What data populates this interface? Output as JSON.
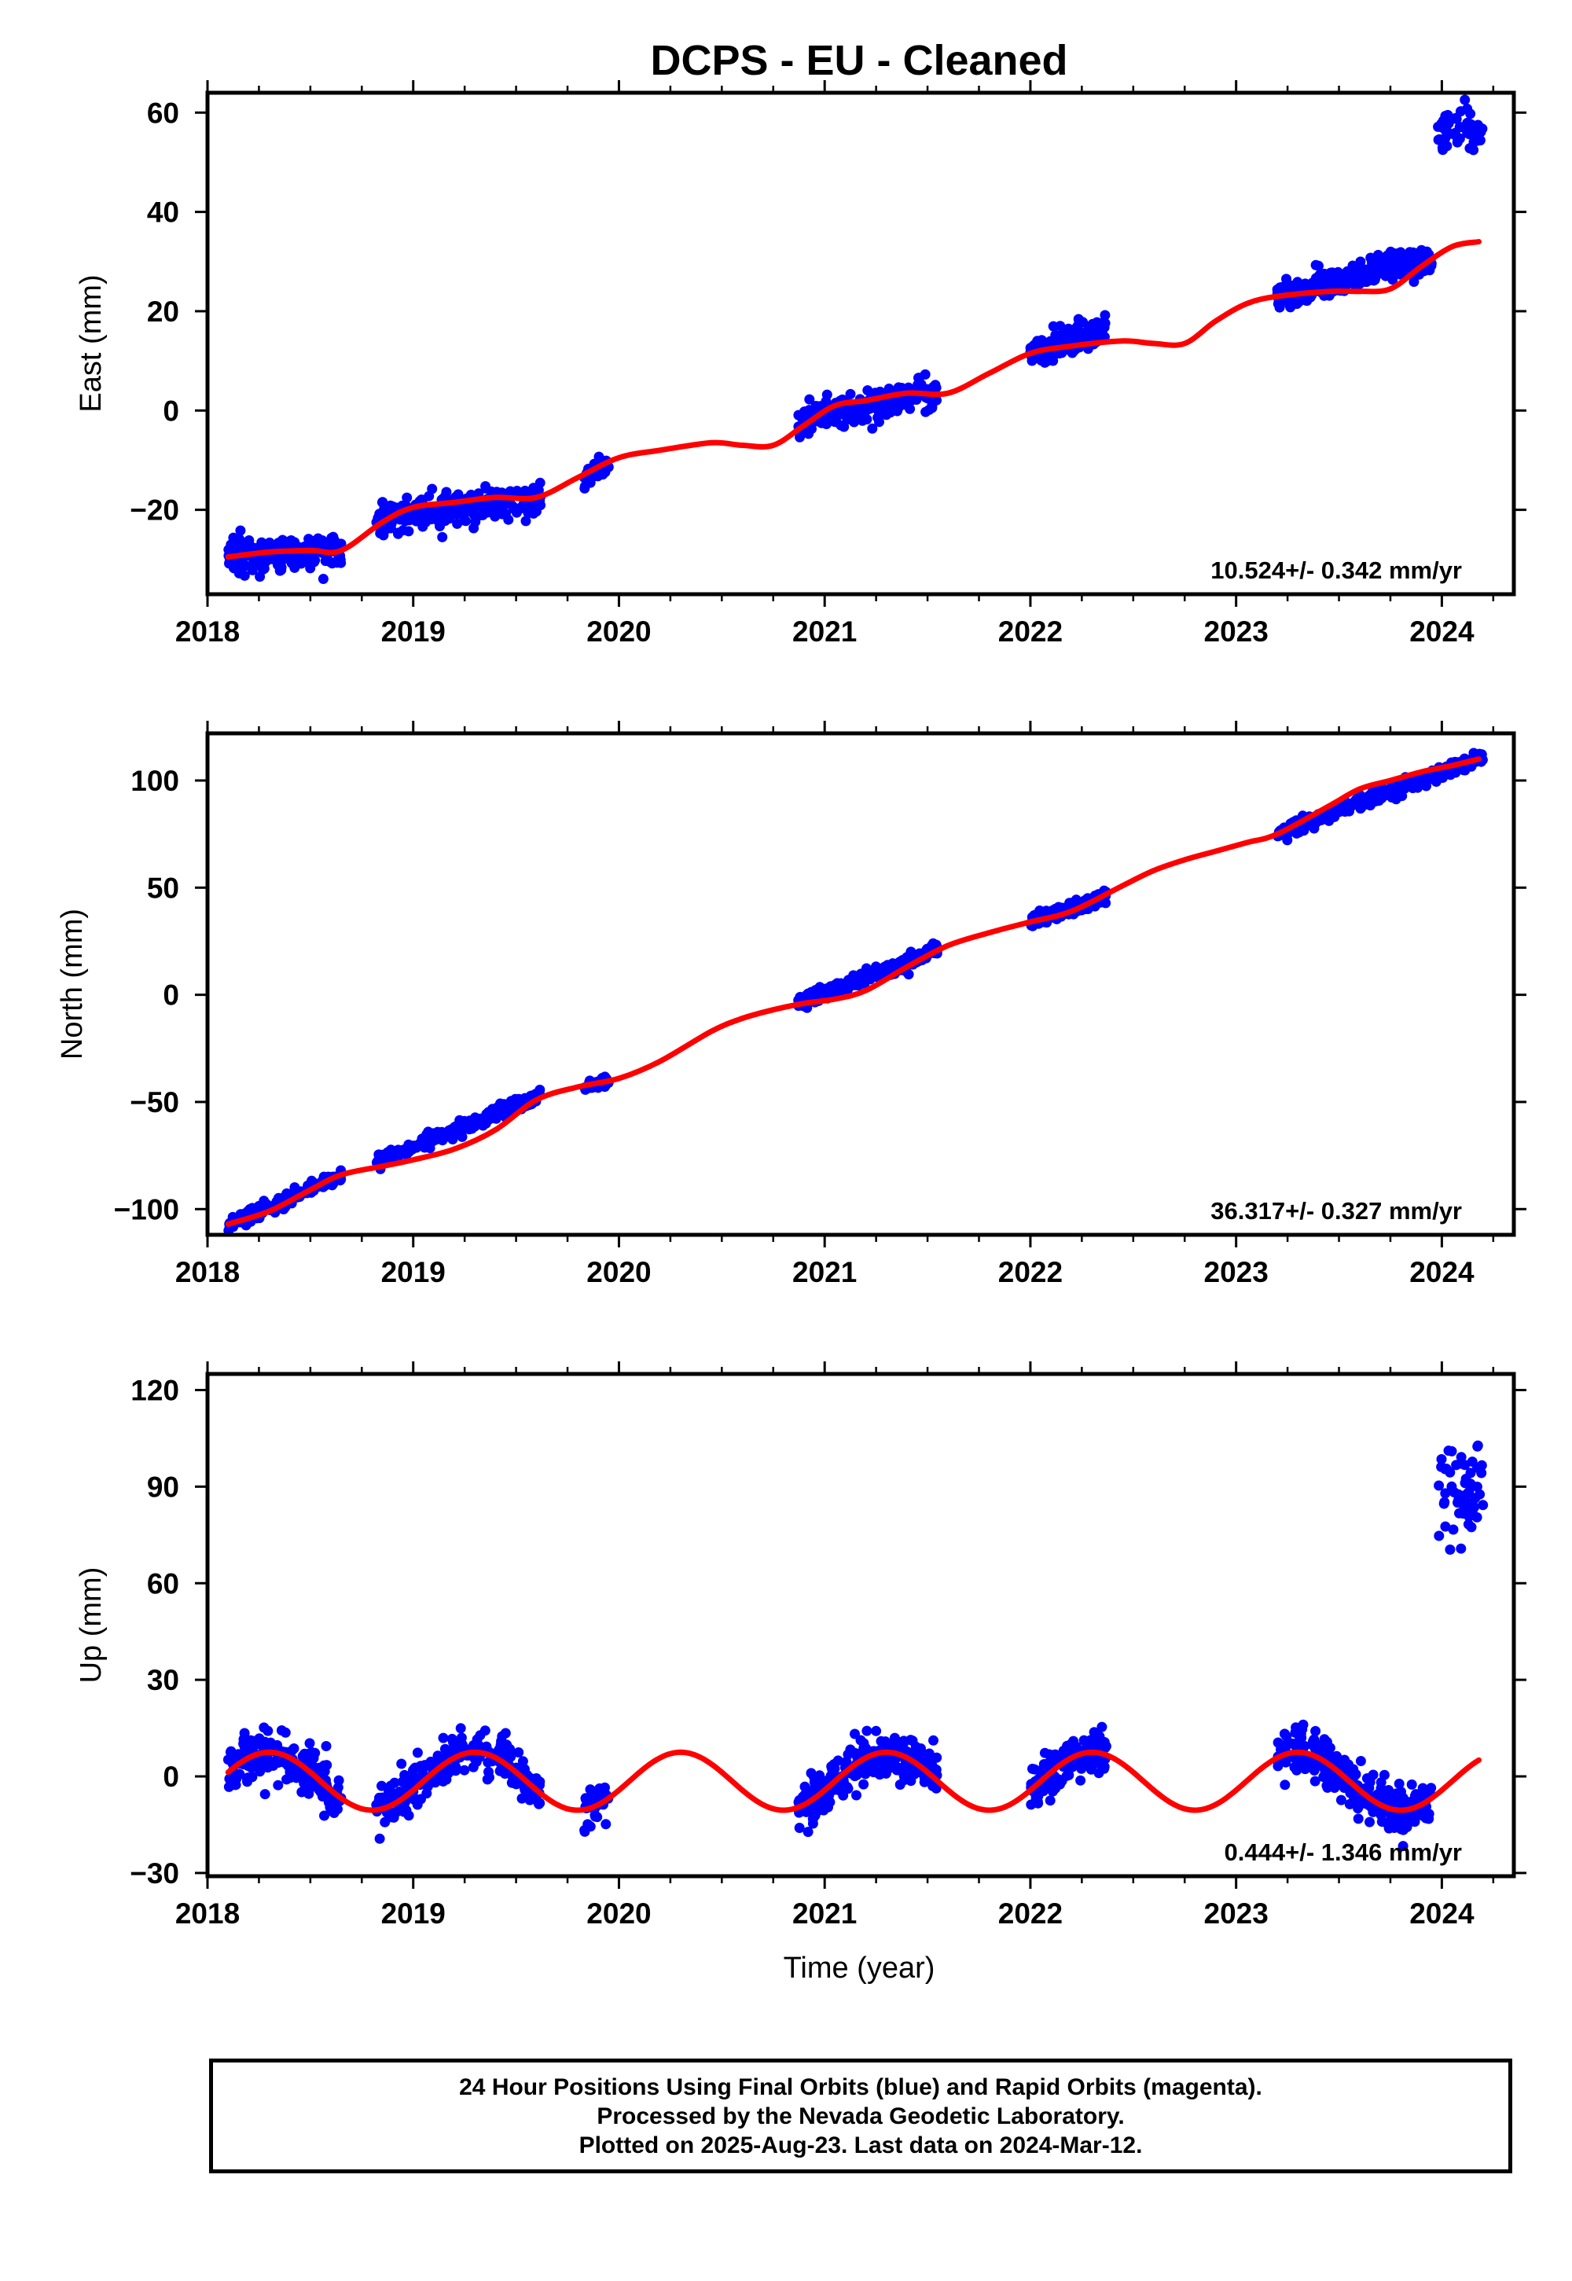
{
  "title": "DCPS  - EU - Cleaned",
  "colors": {
    "data_points": "#0000ff",
    "model_fit": "#ff0000",
    "frame": "#000000"
  },
  "chart_data": [
    {
      "type": "scatter",
      "panel": "east",
      "ylabel": "East (mm)",
      "xlabel": "",
      "x_ticks": [
        "2018",
        "2019",
        "2020",
        "2021",
        "2022",
        "2023",
        "2024"
      ],
      "y_ticks": [
        "60",
        "40",
        "20",
        "0",
        "−20"
      ],
      "xlim": [
        2018.0,
        2024.35
      ],
      "ylim": [
        -37,
        64
      ],
      "rate_label": "10.524+/- 0.342 mm/yr",
      "series": [
        {
          "kind": "fit",
          "x": [
            2018.1,
            2018.3,
            2018.5,
            2018.65,
            2018.85,
            2019.0,
            2019.2,
            2019.4,
            2019.6,
            2019.8,
            2020.0,
            2020.2,
            2020.45,
            2020.6,
            2020.75,
            2020.9,
            2021.05,
            2021.2,
            2021.4,
            2021.6,
            2021.8,
            2022.0,
            2022.2,
            2022.45,
            2022.6,
            2022.75,
            2022.9,
            2023.05,
            2023.2,
            2023.45,
            2023.6,
            2023.75,
            2023.9,
            2024.05,
            2024.18
          ],
          "y": [
            -29.5,
            -28.5,
            -28.2,
            -28.2,
            -22.5,
            -19.5,
            -18.5,
            -17.5,
            -17.5,
            -13.5,
            -9.5,
            -8,
            -6.5,
            -7,
            -7,
            -3,
            1,
            2,
            3.5,
            3.5,
            7.5,
            11.5,
            13,
            14,
            13.5,
            13.5,
            18,
            21.5,
            23,
            24,
            24,
            24.5,
            29,
            33,
            34
          ]
        },
        {
          "kind": "points",
          "segments": [
            {
              "start": 2018.1,
              "end": 2018.65,
              "lo": -29.5,
              "hi": -28.2,
              "spread": 3.5,
              "n": 190
            },
            {
              "start": 2018.82,
              "end": 2019.62,
              "lo": -22.0,
              "hi": -17.5,
              "spread": 3.5,
              "n": 260
            },
            {
              "start": 2019.83,
              "end": 2019.95,
              "lo": -13.5,
              "hi": -10.5,
              "spread": 2.5,
              "n": 30
            },
            {
              "start": 2020.87,
              "end": 2021.55,
              "lo": -2.0,
              "hi": 3.5,
              "spread": 3.5,
              "n": 250
            },
            {
              "start": 2022.0,
              "end": 2022.37,
              "lo": 11.5,
              "hi": 16.5,
              "spread": 3.0,
              "n": 150
            },
            {
              "start": 2023.2,
              "end": 2023.95,
              "lo": 23.0,
              "hi": 31.0,
              "spread": 3.0,
              "n": 280
            },
            {
              "start": 2023.98,
              "end": 2024.2,
              "lo": 56.0,
              "hi": 56.0,
              "spread": 5.0,
              "n": 55
            }
          ]
        }
      ]
    },
    {
      "type": "scatter",
      "panel": "north",
      "ylabel": "North (mm)",
      "xlabel": "",
      "x_ticks": [
        "2018",
        "2019",
        "2020",
        "2021",
        "2022",
        "2023",
        "2024"
      ],
      "y_ticks": [
        "100",
        "50",
        "0",
        "−50",
        "−100"
      ],
      "xlim": [
        2018.0,
        2024.35
      ],
      "ylim": [
        -112,
        122
      ],
      "rate_label": "36.317+/- 0.327 mm/yr",
      "series": [
        {
          "kind": "fit",
          "x": [
            2018.1,
            2018.3,
            2018.5,
            2018.65,
            2018.85,
            2019.0,
            2019.2,
            2019.4,
            2019.6,
            2019.8,
            2020.0,
            2020.2,
            2020.45,
            2020.6,
            2020.75,
            2020.9,
            2021.05,
            2021.2,
            2021.4,
            2021.6,
            2021.8,
            2022.0,
            2022.2,
            2022.45,
            2022.6,
            2022.75,
            2022.9,
            2023.05,
            2023.2,
            2023.45,
            2023.6,
            2023.75,
            2023.9,
            2024.05,
            2024.18
          ],
          "y": [
            -107,
            -101,
            -91,
            -84,
            -80,
            -77,
            -72,
            -63,
            -49,
            -43,
            -39,
            -31,
            -17,
            -11,
            -7,
            -4,
            -2,
            2,
            13,
            23,
            29,
            34,
            39,
            51,
            58,
            63,
            67,
            71,
            75,
            88,
            96,
            100,
            104,
            107,
            110
          ]
        },
        {
          "kind": "points",
          "segments": [
            {
              "start": 2018.1,
              "end": 2018.65,
              "lo": -107,
              "hi": -84,
              "spread": 3.5,
              "n": 190
            },
            {
              "start": 2018.82,
              "end": 2019.62,
              "lo": -78,
              "hi": -47,
              "spread": 3.5,
              "n": 260
            },
            {
              "start": 2019.83,
              "end": 2019.95,
              "lo": -42,
              "hi": -40,
              "spread": 3.0,
              "n": 30
            },
            {
              "start": 2020.87,
              "end": 2021.55,
              "lo": -4,
              "hi": 21,
              "spread": 3.5,
              "n": 250
            },
            {
              "start": 2022.0,
              "end": 2022.37,
              "lo": 34,
              "hi": 46,
              "spread": 3.5,
              "n": 150
            },
            {
              "start": 2023.2,
              "end": 2024.2,
              "lo": 75,
              "hi": 111,
              "spread": 3.5,
              "n": 330
            }
          ]
        }
      ]
    },
    {
      "type": "scatter",
      "panel": "up",
      "ylabel": "Up (mm)",
      "xlabel": "Time (year)",
      "x_ticks": [
        "2018",
        "2019",
        "2020",
        "2021",
        "2022",
        "2023",
        "2024"
      ],
      "y_ticks": [
        "120",
        "90",
        "60",
        "30",
        "0",
        "−30"
      ],
      "xlim": [
        2018.0,
        2024.35
      ],
      "ylim": [
        -31,
        125
      ],
      "rate_label": "0.444+/- 1.346 mm/yr",
      "series": [
        {
          "kind": "fit",
          "model": "seasonal",
          "x_start": 2018.1,
          "x_end": 2024.18,
          "annual_amplitude_mm": 9,
          "peak_month_fraction": 0.3,
          "offset_mm": -1.5
        },
        {
          "kind": "points",
          "segments": [
            {
              "start": 2018.1,
              "end": 2018.65,
              "lo": -5,
              "hi": 8,
              "spread": 8.0,
              "n": 190
            },
            {
              "start": 2018.82,
              "end": 2019.62,
              "lo": -12,
              "hi": 8,
              "spread": 8.0,
              "n": 260
            },
            {
              "start": 2019.83,
              "end": 2019.95,
              "lo": -13,
              "hi": -10,
              "spread": 7.0,
              "n": 30
            },
            {
              "start": 2020.87,
              "end": 2021.55,
              "lo": -12,
              "hi": 8,
              "spread": 8.0,
              "n": 250
            },
            {
              "start": 2022.0,
              "end": 2022.37,
              "lo": -8,
              "hi": 8,
              "spread": 8.0,
              "n": 150
            },
            {
              "start": 2023.2,
              "end": 2023.95,
              "lo": -10,
              "hi": 10,
              "spread": 8.0,
              "n": 280
            },
            {
              "start": 2023.98,
              "end": 2024.2,
              "lo": 88,
              "hi": 88,
              "spread": 18.0,
              "n": 55
            }
          ]
        }
      ]
    }
  ],
  "footer": {
    "line1": "24 Hour Positions Using Final Orbits (blue) and Rapid Orbits (magenta).",
    "line2": "Processed by the Nevada Geodetic Laboratory.",
    "line3": "Plotted on 2025-Aug-23. Last data on 2024-Mar-12."
  }
}
